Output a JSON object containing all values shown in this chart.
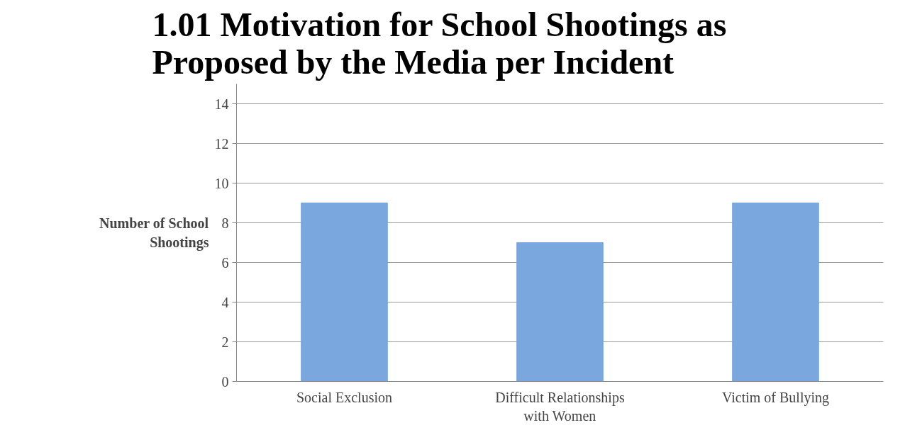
{
  "chart_data": {
    "type": "bar",
    "title": "1.01 Motivation for School Shootings as Proposed by the Media per Incident",
    "ylabel": "Number of School Shootings",
    "categories": [
      "Social Exclusion",
      "Difficult Relationships with Women",
      "Victim of Bullying"
    ],
    "values": [
      9,
      7,
      9
    ],
    "color": "#7aa7dd",
    "ylim": [
      0,
      15
    ],
    "yticks": [
      0,
      2,
      4,
      6,
      8,
      10,
      12,
      14
    ],
    "grid": "y"
  }
}
